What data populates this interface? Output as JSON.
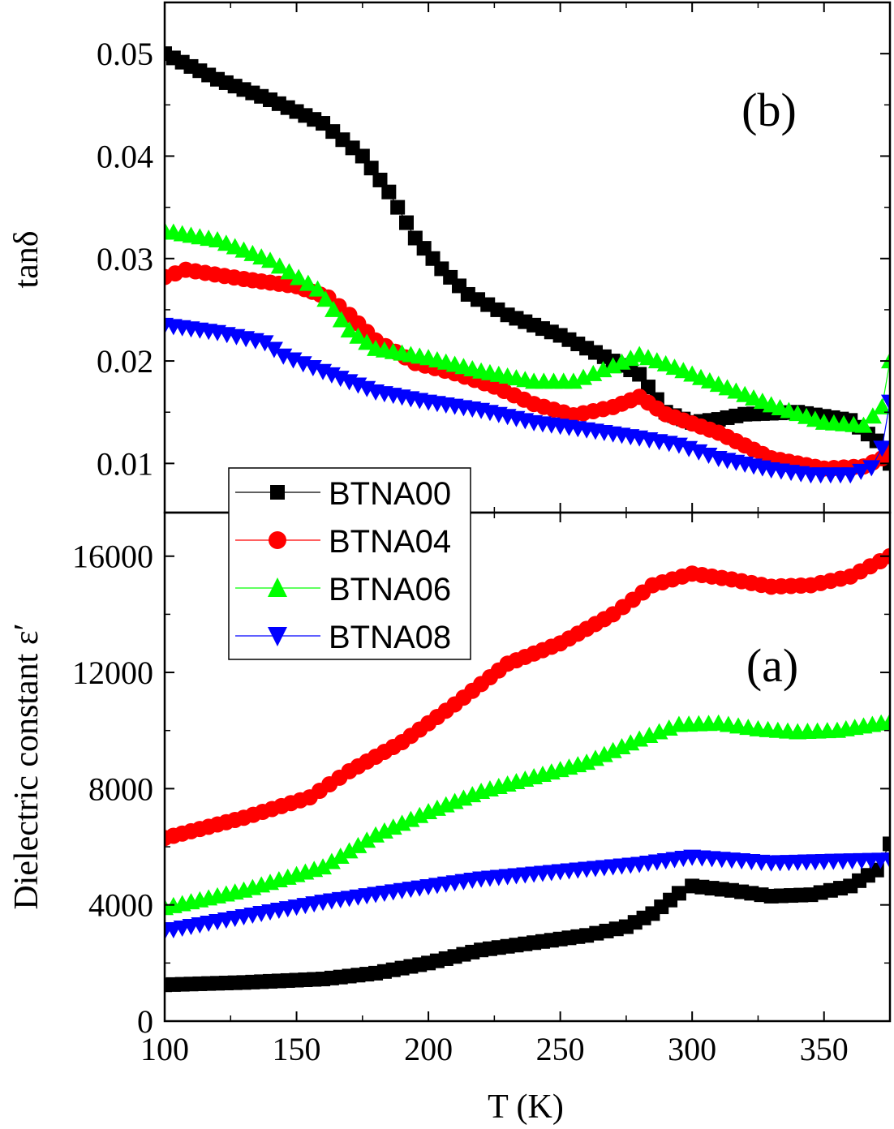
{
  "chart_data": [
    {
      "type": "scatter",
      "panel_label": "(b)",
      "ylabel": "tanδ",
      "xlabel": "",
      "xlim": [
        100,
        375
      ],
      "ylim": [
        0.0052,
        0.055
      ],
      "yticks": [
        "0.01",
        "0.02",
        "0.03",
        "0.04",
        "0.05"
      ],
      "ytick_values": [
        0.01,
        0.02,
        0.03,
        0.04,
        0.05
      ],
      "series": [
        {
          "name": "BTNA00",
          "color": "#000000",
          "marker": "square",
          "points": [
            [
              100,
              0.05
            ],
            [
              120,
              0.0475
            ],
            [
              140,
              0.0455
            ],
            [
              160,
              0.0432
            ],
            [
              175,
              0.04
            ],
            [
              185,
              0.0365
            ],
            [
              195,
              0.032
            ],
            [
              205,
              0.029
            ],
            [
              215,
              0.0265
            ],
            [
              230,
              0.0245
            ],
            [
              250,
              0.0225
            ],
            [
              270,
              0.02
            ],
            [
              280,
              0.0187
            ],
            [
              290,
              0.015
            ],
            [
              300,
              0.014
            ],
            [
              310,
              0.0143
            ],
            [
              320,
              0.0148
            ],
            [
              340,
              0.015
            ],
            [
              360,
              0.0142
            ],
            [
              370,
              0.0122
            ],
            [
              375,
              0.01
            ]
          ]
        },
        {
          "name": "BTNA04",
          "color": "#ff0000",
          "marker": "circle",
          "points": [
            [
              100,
              0.0282
            ],
            [
              108,
              0.0289
            ],
            [
              130,
              0.028
            ],
            [
              150,
              0.0273
            ],
            [
              162,
              0.0262
            ],
            [
              170,
              0.0245
            ],
            [
              180,
              0.022
            ],
            [
              195,
              0.0198
            ],
            [
              210,
              0.0188
            ],
            [
              225,
              0.0175
            ],
            [
              240,
              0.0158
            ],
            [
              255,
              0.0147
            ],
            [
              270,
              0.0155
            ],
            [
              280,
              0.0165
            ],
            [
              290,
              0.0148
            ],
            [
              310,
              0.013
            ],
            [
              330,
              0.0105
            ],
            [
              350,
              0.0095
            ],
            [
              365,
              0.0097
            ],
            [
              372,
              0.0105
            ],
            [
              375,
              0.0112
            ]
          ]
        },
        {
          "name": "BTNA06",
          "color": "#00ff00",
          "marker": "triangle-up",
          "points": [
            [
              100,
              0.0327
            ],
            [
              120,
              0.0318
            ],
            [
              140,
              0.0298
            ],
            [
              158,
              0.027
            ],
            [
              170,
              0.023
            ],
            [
              180,
              0.0212
            ],
            [
              200,
              0.0203
            ],
            [
              220,
              0.019
            ],
            [
              240,
              0.018
            ],
            [
              255,
              0.018
            ],
            [
              270,
              0.0195
            ],
            [
              280,
              0.0206
            ],
            [
              290,
              0.0197
            ],
            [
              310,
              0.0177
            ],
            [
              330,
              0.0157
            ],
            [
              350,
              0.014
            ],
            [
              365,
              0.0137
            ],
            [
              372,
              0.0155
            ],
            [
              375,
              0.02
            ]
          ]
        },
        {
          "name": "BTNA08",
          "color": "#0000ff",
          "marker": "triangle-down",
          "points": [
            [
              100,
              0.0235
            ],
            [
              120,
              0.0228
            ],
            [
              138,
              0.0218
            ],
            [
              145,
              0.0205
            ],
            [
              160,
              0.019
            ],
            [
              180,
              0.017
            ],
            [
              200,
              0.016
            ],
            [
              220,
              0.0152
            ],
            [
              240,
              0.014
            ],
            [
              260,
              0.0133
            ],
            [
              280,
              0.0125
            ],
            [
              295,
              0.0118
            ],
            [
              310,
              0.0105
            ],
            [
              330,
              0.0094
            ],
            [
              345,
              0.0089
            ],
            [
              360,
              0.0089
            ],
            [
              368,
              0.0096
            ],
            [
              372,
              0.0115
            ],
            [
              375,
              0.016
            ]
          ]
        }
      ]
    },
    {
      "type": "scatter",
      "panel_label": "(a)",
      "ylabel": "Dielectric constant ε′",
      "xlabel": "T (K)",
      "xlim": [
        100,
        375
      ],
      "ylim": [
        0,
        17500
      ],
      "yticks": [
        "0",
        "4000",
        "8000",
        "12000",
        "16000"
      ],
      "ytick_values": [
        0,
        4000,
        8000,
        12000,
        16000
      ],
      "xticks": [
        "100",
        "150",
        "200",
        "250",
        "300",
        "350"
      ],
      "xtick_values": [
        100,
        150,
        200,
        250,
        300,
        350
      ],
      "series": [
        {
          "name": "BTNA00",
          "color": "#000000",
          "marker": "square",
          "points": [
            [
              100,
              1250
            ],
            [
              130,
              1330
            ],
            [
              160,
              1450
            ],
            [
              180,
              1650
            ],
            [
              200,
              2000
            ],
            [
              220,
              2450
            ],
            [
              240,
              2700
            ],
            [
              260,
              2950
            ],
            [
              275,
              3250
            ],
            [
              285,
              3700
            ],
            [
              295,
              4400
            ],
            [
              300,
              4650
            ],
            [
              315,
              4500
            ],
            [
              330,
              4300
            ],
            [
              345,
              4350
            ],
            [
              360,
              4650
            ],
            [
              370,
              5200
            ],
            [
              375,
              6100
            ]
          ]
        },
        {
          "name": "BTNA04",
          "color": "#ff0000",
          "marker": "circle",
          "points": [
            [
              100,
              6300
            ],
            [
              130,
              7000
            ],
            [
              155,
              7700
            ],
            [
              170,
              8600
            ],
            [
              190,
              9600
            ],
            [
              210,
              10900
            ],
            [
              230,
              12300
            ],
            [
              250,
              13000
            ],
            [
              270,
              14000
            ],
            [
              285,
              15000
            ],
            [
              300,
              15400
            ],
            [
              315,
              15200
            ],
            [
              330,
              14950
            ],
            [
              345,
              15000
            ],
            [
              360,
              15300
            ],
            [
              375,
              16000
            ]
          ]
        },
        {
          "name": "BTNA06",
          "color": "#00ff00",
          "marker": "triangle-up",
          "points": [
            [
              100,
              3900
            ],
            [
              130,
              4500
            ],
            [
              160,
              5300
            ],
            [
              180,
              6400
            ],
            [
              200,
              7200
            ],
            [
              220,
              7900
            ],
            [
              240,
              8400
            ],
            [
              260,
              8900
            ],
            [
              280,
              9700
            ],
            [
              295,
              10200
            ],
            [
              310,
              10250
            ],
            [
              325,
              10050
            ],
            [
              340,
              9950
            ],
            [
              355,
              10000
            ],
            [
              375,
              10300
            ]
          ]
        },
        {
          "name": "BTNA08",
          "color": "#0000ff",
          "marker": "triangle-down",
          "points": [
            [
              100,
              3100
            ],
            [
              130,
              3600
            ],
            [
              160,
              4100
            ],
            [
              190,
              4500
            ],
            [
              220,
              4900
            ],
            [
              250,
              5150
            ],
            [
              280,
              5400
            ],
            [
              300,
              5650
            ],
            [
              315,
              5550
            ],
            [
              330,
              5450
            ],
            [
              350,
              5500
            ],
            [
              375,
              5550
            ]
          ]
        }
      ]
    }
  ],
  "legend": {
    "entries": [
      "BTNA00",
      "BTNA04",
      "BTNA06",
      "BTNA08"
    ]
  }
}
